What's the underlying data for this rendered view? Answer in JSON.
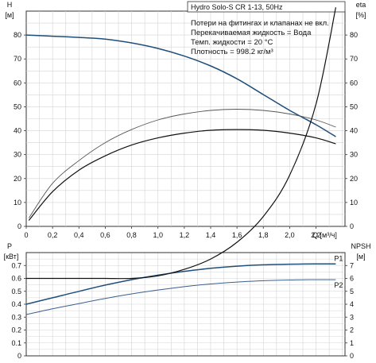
{
  "chart_data": [
    {
      "type": "line",
      "title": "Hydro Solo-S CR 1-13, 50Hz",
      "notes": [
        "Потери на фитингах и клапанах не вкл.",
        "Перекачиваемая жидкость = Вода",
        "Темп. жидкости = 20 °C",
        "Плотность = 998.2 кг/м³"
      ],
      "y_left_label": [
        "H",
        "[м]"
      ],
      "y_right_label": [
        "eta",
        "[%]"
      ],
      "x_label": "Q [м³/ч]",
      "x_ticks": [
        "0",
        "0,2",
        "0,4",
        "0,6",
        "0,8",
        "1,0",
        "1,2",
        "1,4",
        "1,6",
        "1,8",
        "2,0",
        "2,2"
      ],
      "x_range": [
        0,
        2.42
      ],
      "ylim": [
        0,
        90
      ],
      "y_ticks": [
        0,
        10,
        20,
        30,
        40,
        50,
        60,
        70,
        80
      ],
      "grid": true,
      "series": [
        {
          "curve": "H",
          "color": "#1f4e79",
          "width": 1.5,
          "x": [
            0.0,
            0.2,
            0.4,
            0.6,
            0.8,
            1.0,
            1.2,
            1.4,
            1.6,
            1.8,
            2.0,
            2.2,
            2.35
          ],
          "y": [
            80,
            79.5,
            79,
            78.3,
            76.7,
            74.4,
            71.2,
            67.1,
            61.7,
            55.1,
            48.5,
            42.5,
            37.5
          ]
        },
        {
          "curve": "eta",
          "color": "#555555",
          "width": 0.9,
          "x": [
            0.02,
            0.2,
            0.4,
            0.6,
            0.8,
            1.0,
            1.2,
            1.4,
            1.6,
            1.8,
            2.0,
            2.2,
            2.35
          ],
          "y": [
            3.5,
            18,
            27.5,
            35,
            40.5,
            44.5,
            47,
            48.5,
            49,
            48.5,
            47,
            44.5,
            41.5
          ]
        },
        {
          "curve": "eta_total",
          "color": "#111111",
          "width": 1.2,
          "x": [
            0.02,
            0.2,
            0.4,
            0.6,
            0.8,
            1.0,
            1.2,
            1.4,
            1.6,
            1.8,
            2.0,
            2.2,
            2.35
          ],
          "y": [
            2.5,
            14.5,
            23.5,
            29.5,
            34,
            37,
            39,
            40.2,
            40.5,
            40.2,
            39,
            37,
            34.5
          ]
        }
      ]
    },
    {
      "type": "line",
      "y_left_label": [
        "P",
        "[кВт]"
      ],
      "y_right_label": [
        "NPSH",
        "[м]"
      ],
      "x_range": [
        0,
        2.42
      ],
      "ylim": [
        0,
        0.8
      ],
      "y_ticks": [
        "0",
        "0.1",
        "0.2",
        "0.3",
        "0.4",
        "0.5",
        "0.6",
        "0.7"
      ],
      "y_right_ticks": [
        "0",
        "1",
        "2",
        "3",
        "4",
        "5",
        "6",
        "7"
      ],
      "grid": true,
      "series": [
        {
          "name": "P1",
          "color": "#1f4e79",
          "width": 1.5,
          "x": [
            0.0,
            0.2,
            0.4,
            0.6,
            0.8,
            1.0,
            1.2,
            1.4,
            1.6,
            1.8,
            2.0,
            2.2,
            2.35
          ],
          "y": [
            0.4,
            0.45,
            0.5,
            0.548,
            0.59,
            0.625,
            0.655,
            0.678,
            0.695,
            0.705,
            0.71,
            0.712,
            0.712
          ]
        },
        {
          "name": "P2",
          "color": "#3a5f8f",
          "width": 1.0,
          "x": [
            0.0,
            0.2,
            0.4,
            0.6,
            0.8,
            1.0,
            1.2,
            1.4,
            1.6,
            1.8,
            2.0,
            2.2,
            2.35
          ],
          "y": [
            0.32,
            0.365,
            0.405,
            0.445,
            0.48,
            0.51,
            0.536,
            0.557,
            0.572,
            0.582,
            0.588,
            0.59,
            0.59
          ]
        },
        {
          "curve": "NPSH",
          "color": "#111111",
          "width": 1.2,
          "x": [
            0.0,
            0.2,
            0.4,
            0.6,
            0.8,
            1.0,
            1.2,
            1.4,
            1.6,
            1.8,
            2.0,
            2.2,
            2.35
          ],
          "y": [
            0.6,
            0.6,
            0.6,
            0.6,
            0.6,
            0.62,
            0.67,
            0.75,
            0.88,
            1.08,
            1.4,
            1.95,
            2.7
          ]
        }
      ]
    }
  ]
}
